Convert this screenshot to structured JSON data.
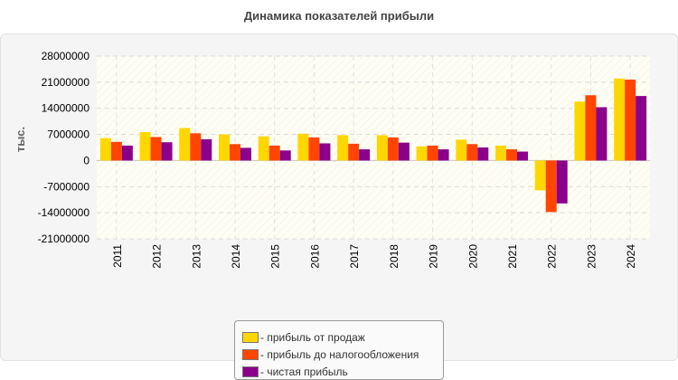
{
  "chart_data": {
    "type": "bar",
    "title": "Динамика показателей прибыли",
    "ylabel": "тыс.",
    "xlabel": "",
    "categories": [
      "2011",
      "2012",
      "2013",
      "2014",
      "2015",
      "2016",
      "2017",
      "2018",
      "2019",
      "2020",
      "2021",
      "2022",
      "2023",
      "2024"
    ],
    "ylim": [
      -21000000,
      28000000
    ],
    "yticks": [
      28000000,
      21000000,
      14000000,
      7000000,
      0,
      -7000000,
      -14000000,
      -21000000
    ],
    "ytick_labels": [
      "28000000",
      "21000000",
      "14000000",
      "7000000",
      "0",
      "-7000000",
      "-14000000",
      "-21000000"
    ],
    "grid": true,
    "legend_position": "bottom",
    "series": [
      {
        "name": "- прибыль от продаж",
        "color": "#ffd700",
        "values": [
          6000000,
          7600000,
          8700000,
          7000000,
          6500000,
          7200000,
          6800000,
          6800000,
          3800000,
          5600000,
          4000000,
          -8000000,
          15800000,
          22000000
        ]
      },
      {
        "name": "- прибыль до налогообложения",
        "color": "#ff4500",
        "values": [
          5000000,
          6300000,
          7300000,
          4400000,
          4000000,
          6200000,
          4500000,
          6200000,
          4000000,
          4400000,
          3000000,
          -13800000,
          17500000,
          21700000
        ]
      },
      {
        "name": "- чистая прибыль",
        "color": "#8b008b",
        "values": [
          4000000,
          4900000,
          5700000,
          3400000,
          2700000,
          4600000,
          3000000,
          4800000,
          3000000,
          3500000,
          2400000,
          -11500000,
          14300000,
          17300000
        ]
      }
    ]
  }
}
